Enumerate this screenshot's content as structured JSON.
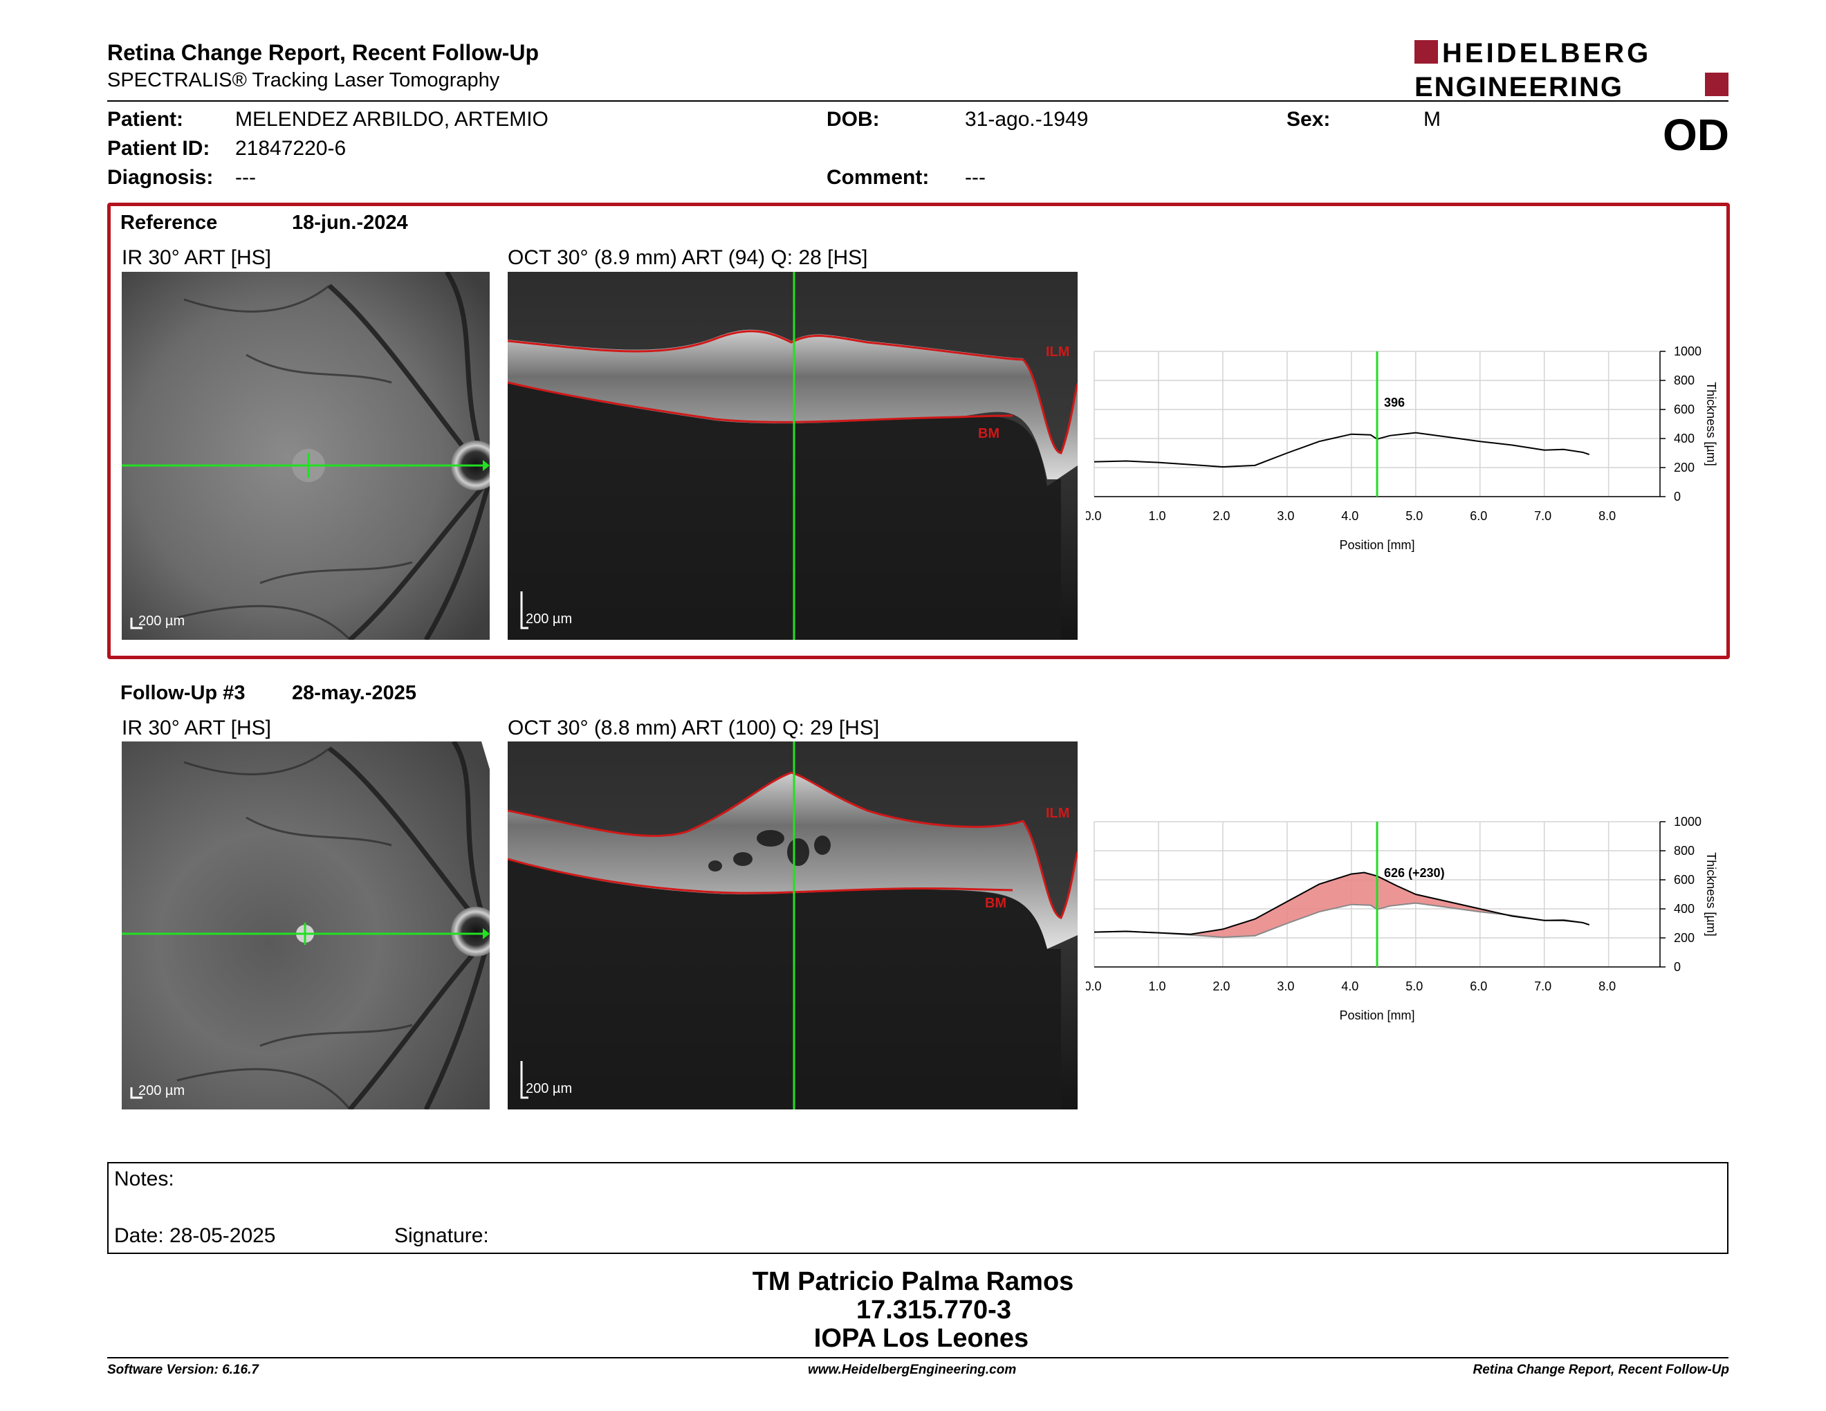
{
  "header": {
    "title": "Retina Change Report, Recent Follow-Up",
    "subtitle": "SPECTRALIS® Tracking Laser Tomography",
    "logo_line1": "HEIDELBERG",
    "logo_line2": "ENGINEERING",
    "brand_color": "#9b1b30"
  },
  "patient": {
    "patient_label": "Patient:",
    "patient_value": "MELENDEZ ARBILDO, ARTEMIO",
    "id_label": "Patient ID:",
    "id_value": "21847220-6",
    "diagnosis_label": "Diagnosis:",
    "diagnosis_value": "---",
    "dob_label": "DOB:",
    "dob_value": "31-ago.-1949",
    "comment_label": "Comment:",
    "comment_value": "---",
    "sex_label": "Sex:",
    "sex_value": "M",
    "eye": "OD"
  },
  "reference": {
    "label": "Reference",
    "date": "18-jun.-2024",
    "ir_title": "IR 30° ART [HS]",
    "oct_title": "OCT 30° (8.9 mm) ART (94) Q: 28 [HS]",
    "scale_ir": "200 µm",
    "scale_oct": "200 µm",
    "ilm": "ILM",
    "bm": "BM",
    "frame_color": "#b3121e"
  },
  "followup": {
    "label": "Follow-Up #3",
    "date": "28-may.-2025",
    "ir_title": "IR 30° ART [HS]",
    "oct_title": "OCT 30° (8.8 mm) ART (100) Q: 29 [HS]",
    "scale_ir": "200 µm",
    "scale_oct": "200 µm",
    "ilm": "ILM",
    "bm": "BM"
  },
  "chart_data": [
    {
      "type": "line",
      "title": "",
      "xlabel": "Position [mm]",
      "ylabel": "Thickness [µm]",
      "xlim": [
        0,
        8.8
      ],
      "ylim": [
        0,
        1000
      ],
      "xticks": [
        "0.0",
        "1.0",
        "2.0",
        "3.0",
        "4.0",
        "5.0",
        "6.0",
        "7.0",
        "8.0"
      ],
      "yticks": [
        "0",
        "200",
        "400",
        "600",
        "800",
        "1000"
      ],
      "marker_x": 4.4,
      "marker_label": "396",
      "series": [
        {
          "values_x": [
            0,
            0.5,
            1,
            1.5,
            2,
            2.5,
            3,
            3.5,
            4,
            4.3,
            4.4,
            4.6,
            5,
            5.5,
            6,
            6.5,
            7,
            7.3,
            7.6,
            7.7
          ],
          "values_y": [
            240,
            245,
            235,
            220,
            205,
            215,
            300,
            380,
            430,
            425,
            396,
            420,
            440,
            410,
            380,
            355,
            320,
            325,
            305,
            290
          ]
        }
      ]
    },
    {
      "type": "area",
      "title": "",
      "xlabel": "Position [mm]",
      "ylabel": "Thickness [µm]",
      "xlim": [
        0,
        8.8
      ],
      "ylim": [
        0,
        1000
      ],
      "xticks": [
        "0.0",
        "1.0",
        "2.0",
        "3.0",
        "4.0",
        "5.0",
        "6.0",
        "7.0",
        "8.0"
      ],
      "yticks": [
        "0",
        "200",
        "400",
        "600",
        "800",
        "1000"
      ],
      "marker_x": 4.4,
      "marker_label": "626 (+230)",
      "series": [
        {
          "name": "Follow-Up",
          "values_x": [
            0,
            0.5,
            1,
            1.5,
            2,
            2.5,
            3,
            3.5,
            4,
            4.2,
            4.4,
            4.7,
            5,
            5.5,
            6,
            6.5,
            7,
            7.3,
            7.6,
            7.7
          ],
          "values_y": [
            240,
            245,
            235,
            225,
            260,
            330,
            450,
            570,
            640,
            650,
            626,
            560,
            500,
            450,
            400,
            350,
            320,
            320,
            305,
            290
          ]
        },
        {
          "name": "Reference",
          "values_x": [
            0,
            0.5,
            1,
            1.5,
            2,
            2.5,
            3,
            3.5,
            4,
            4.3,
            4.4,
            4.6,
            5,
            5.5,
            6,
            6.5,
            7,
            7.3,
            7.6,
            7.7
          ],
          "values_y": [
            240,
            245,
            235,
            220,
            205,
            215,
            300,
            380,
            430,
            425,
            396,
            420,
            440,
            410,
            380,
            355,
            320,
            325,
            305,
            290
          ]
        }
      ]
    }
  ],
  "notes": {
    "notes_label": "Notes:",
    "date_label": "Date: 28-05-2025",
    "signature_label": "Signature:"
  },
  "signature": {
    "line1": "TM Patricio Palma Ramos",
    "line2": "17.315.770-3",
    "line3": "IOPA Los Leones"
  },
  "footer": {
    "left": "Software Version: 6.16.7",
    "center": "www.HeidelbergEngineering.com",
    "right": "Retina Change Report, Recent Follow-Up"
  }
}
